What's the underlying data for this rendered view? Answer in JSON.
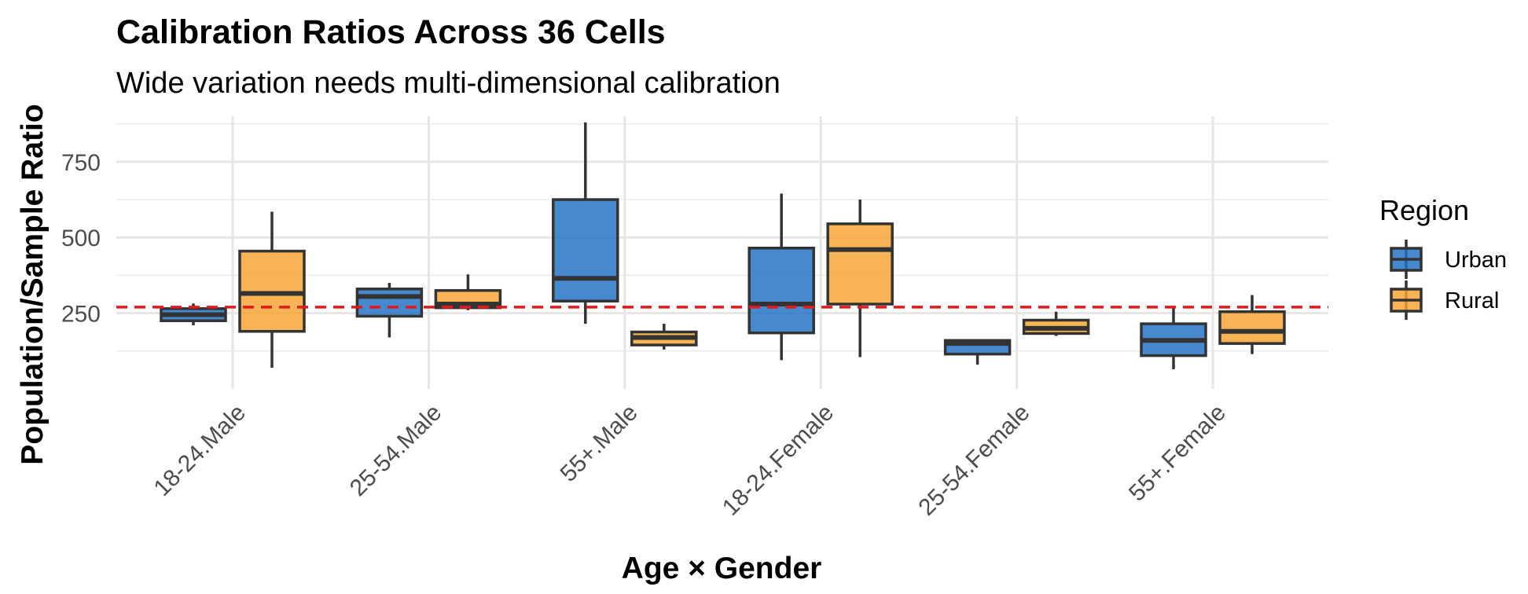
{
  "chart_data": {
    "type": "boxplot",
    "title": "Calibration Ratios Across 36 Cells",
    "subtitle": "Wide variation needs multi-dimensional calibration",
    "xlabel": "Age × Gender",
    "ylabel": "Population/Sample Ratio",
    "categories": [
      "18-24.Male",
      "25-54.Male",
      "55+.Male",
      "18-24.Female",
      "25-54.Female",
      "55+.Female"
    ],
    "ylim": [
      0,
      900
    ],
    "yticks": [
      250,
      500,
      750
    ],
    "reference_line": {
      "value": 270,
      "color": "#E31A1C",
      "style": "dashed"
    },
    "legend": {
      "title": "Region",
      "position": "right"
    },
    "grid": true,
    "series": [
      {
        "name": "Urban",
        "color": "#1F6FC5",
        "boxes": [
          {
            "min": 210,
            "q1": 225,
            "median": 245,
            "q3": 265,
            "max": 282
          },
          {
            "min": 170,
            "q1": 240,
            "median": 305,
            "q3": 330,
            "max": 350
          },
          {
            "min": 215,
            "q1": 290,
            "median": 365,
            "q3": 625,
            "max": 880
          },
          {
            "min": 95,
            "q1": 185,
            "median": 280,
            "q3": 465,
            "max": 645
          },
          {
            "min": 80,
            "q1": 115,
            "median": 150,
            "q3": 160,
            "max": 162
          },
          {
            "min": 65,
            "q1": 110,
            "median": 160,
            "q3": 215,
            "max": 270
          }
        ]
      },
      {
        "name": "Rural",
        "color": "#F5A22E",
        "boxes": [
          {
            "min": 70,
            "q1": 190,
            "median": 315,
            "q3": 455,
            "max": 585
          },
          {
            "min": 260,
            "q1": 268,
            "median": 280,
            "q3": 325,
            "max": 378
          },
          {
            "min": 130,
            "q1": 145,
            "median": 170,
            "q3": 188,
            "max": 215
          },
          {
            "min": 105,
            "q1": 280,
            "median": 460,
            "q3": 545,
            "max": 625
          },
          {
            "min": 175,
            "q1": 183,
            "median": 200,
            "q3": 227,
            "max": 255
          },
          {
            "min": 115,
            "q1": 150,
            "median": 190,
            "q3": 255,
            "max": 310
          }
        ]
      }
    ]
  }
}
